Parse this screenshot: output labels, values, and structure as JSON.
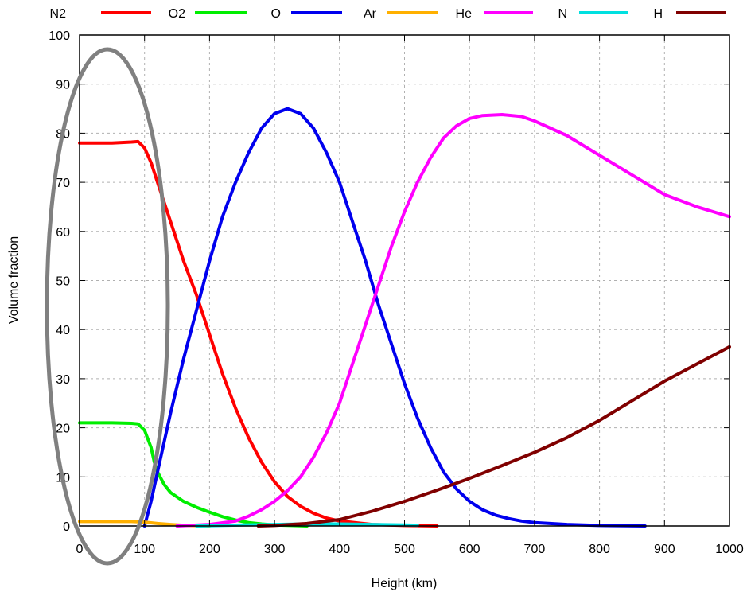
{
  "chart_data": {
    "type": "line",
    "title": "",
    "xlabel": "Height (km)",
    "ylabel": "Volume fraction",
    "xlim": [
      0,
      1000
    ],
    "ylim": [
      0,
      100
    ],
    "xticks": [
      0,
      100,
      200,
      300,
      400,
      500,
      600,
      700,
      800,
      900,
      1000
    ],
    "yticks": [
      0,
      10,
      20,
      30,
      40,
      50,
      60,
      70,
      80,
      90,
      100
    ],
    "grid": true,
    "legend_position": "top",
    "series": [
      {
        "name": "N2",
        "color": "#ff0000",
        "points": [
          [
            0,
            78
          ],
          [
            50,
            78
          ],
          [
            80,
            78.2
          ],
          [
            90,
            78.3
          ],
          [
            100,
            77
          ],
          [
            110,
            74
          ],
          [
            120,
            70
          ],
          [
            140,
            62
          ],
          [
            160,
            54
          ],
          [
            180,
            47
          ],
          [
            200,
            39
          ],
          [
            220,
            31
          ],
          [
            240,
            24
          ],
          [
            260,
            18
          ],
          [
            280,
            13
          ],
          [
            300,
            9
          ],
          [
            320,
            6
          ],
          [
            340,
            4
          ],
          [
            360,
            2.6
          ],
          [
            380,
            1.6
          ],
          [
            400,
            1
          ],
          [
            450,
            0.3
          ],
          [
            500,
            0.1
          ],
          [
            550,
            0
          ]
        ]
      },
      {
        "name": "O2",
        "color": "#00ee00",
        "points": [
          [
            0,
            21
          ],
          [
            50,
            21
          ],
          [
            80,
            20.9
          ],
          [
            90,
            20.8
          ],
          [
            100,
            19.5
          ],
          [
            110,
            16
          ],
          [
            115,
            13
          ],
          [
            120,
            11
          ],
          [
            130,
            8.5
          ],
          [
            140,
            6.8
          ],
          [
            160,
            5
          ],
          [
            180,
            3.8
          ],
          [
            200,
            2.8
          ],
          [
            220,
            1.9
          ],
          [
            240,
            1.2
          ],
          [
            260,
            0.7
          ],
          [
            280,
            0.4
          ],
          [
            300,
            0.2
          ],
          [
            350,
            0
          ]
        ]
      },
      {
        "name": "O",
        "color": "#0000ee",
        "points": [
          [
            100,
            0
          ],
          [
            110,
            5
          ],
          [
            120,
            11
          ],
          [
            140,
            23
          ],
          [
            160,
            34
          ],
          [
            180,
            44
          ],
          [
            200,
            54
          ],
          [
            220,
            63
          ],
          [
            240,
            70
          ],
          [
            260,
            76
          ],
          [
            280,
            81
          ],
          [
            300,
            84
          ],
          [
            320,
            85
          ],
          [
            340,
            84
          ],
          [
            360,
            81
          ],
          [
            380,
            76
          ],
          [
            400,
            70
          ],
          [
            420,
            62
          ],
          [
            440,
            54
          ],
          [
            460,
            45
          ],
          [
            480,
            37
          ],
          [
            500,
            29
          ],
          [
            520,
            22
          ],
          [
            540,
            16
          ],
          [
            560,
            11
          ],
          [
            580,
            7.5
          ],
          [
            600,
            5
          ],
          [
            620,
            3.3
          ],
          [
            640,
            2.2
          ],
          [
            660,
            1.5
          ],
          [
            680,
            1.0
          ],
          [
            700,
            0.7
          ],
          [
            750,
            0.3
          ],
          [
            800,
            0.1
          ],
          [
            870,
            0
          ]
        ]
      },
      {
        "name": "Ar",
        "color": "#ffb000",
        "points": [
          [
            0,
            0.9
          ],
          [
            50,
            0.9
          ],
          [
            80,
            0.9
          ],
          [
            100,
            0.8
          ],
          [
            120,
            0.5
          ],
          [
            140,
            0.3
          ],
          [
            160,
            0.15
          ],
          [
            180,
            0.07
          ],
          [
            200,
            0
          ]
        ]
      },
      {
        "name": "He",
        "color": "#ff00ff",
        "points": [
          [
            150,
            0
          ],
          [
            200,
            0.3
          ],
          [
            240,
            1
          ],
          [
            260,
            2
          ],
          [
            280,
            3.3
          ],
          [
            300,
            5
          ],
          [
            320,
            7.2
          ],
          [
            340,
            10
          ],
          [
            360,
            14
          ],
          [
            380,
            19
          ],
          [
            400,
            25
          ],
          [
            420,
            33
          ],
          [
            440,
            41
          ],
          [
            460,
            49
          ],
          [
            480,
            57
          ],
          [
            500,
            64
          ],
          [
            520,
            70
          ],
          [
            540,
            75
          ],
          [
            560,
            79
          ],
          [
            580,
            81.5
          ],
          [
            600,
            83
          ],
          [
            620,
            83.6
          ],
          [
            650,
            83.8
          ],
          [
            680,
            83.4
          ],
          [
            700,
            82.5
          ],
          [
            750,
            79.5
          ],
          [
            800,
            75.5
          ],
          [
            850,
            71.5
          ],
          [
            900,
            67.5
          ],
          [
            950,
            65
          ],
          [
            1000,
            63
          ]
        ]
      },
      {
        "name": "N",
        "color": "#00e0e0",
        "points": [
          [
            180,
            0
          ],
          [
            250,
            0.2
          ],
          [
            300,
            0.3
          ],
          [
            350,
            0.4
          ],
          [
            400,
            0.4
          ],
          [
            450,
            0.3
          ],
          [
            500,
            0.2
          ],
          [
            520,
            0.15
          ]
        ]
      },
      {
        "name": "H",
        "color": "#800000",
        "points": [
          [
            275,
            0
          ],
          [
            300,
            0.1
          ],
          [
            350,
            0.5
          ],
          [
            400,
            1.3
          ],
          [
            450,
            3
          ],
          [
            500,
            5
          ],
          [
            550,
            7.3
          ],
          [
            600,
            9.7
          ],
          [
            650,
            12.3
          ],
          [
            700,
            15
          ],
          [
            750,
            18
          ],
          [
            800,
            21.5
          ],
          [
            850,
            25.5
          ],
          [
            900,
            29.5
          ],
          [
            950,
            33
          ],
          [
            1000,
            36.5
          ]
        ]
      }
    ]
  }
}
